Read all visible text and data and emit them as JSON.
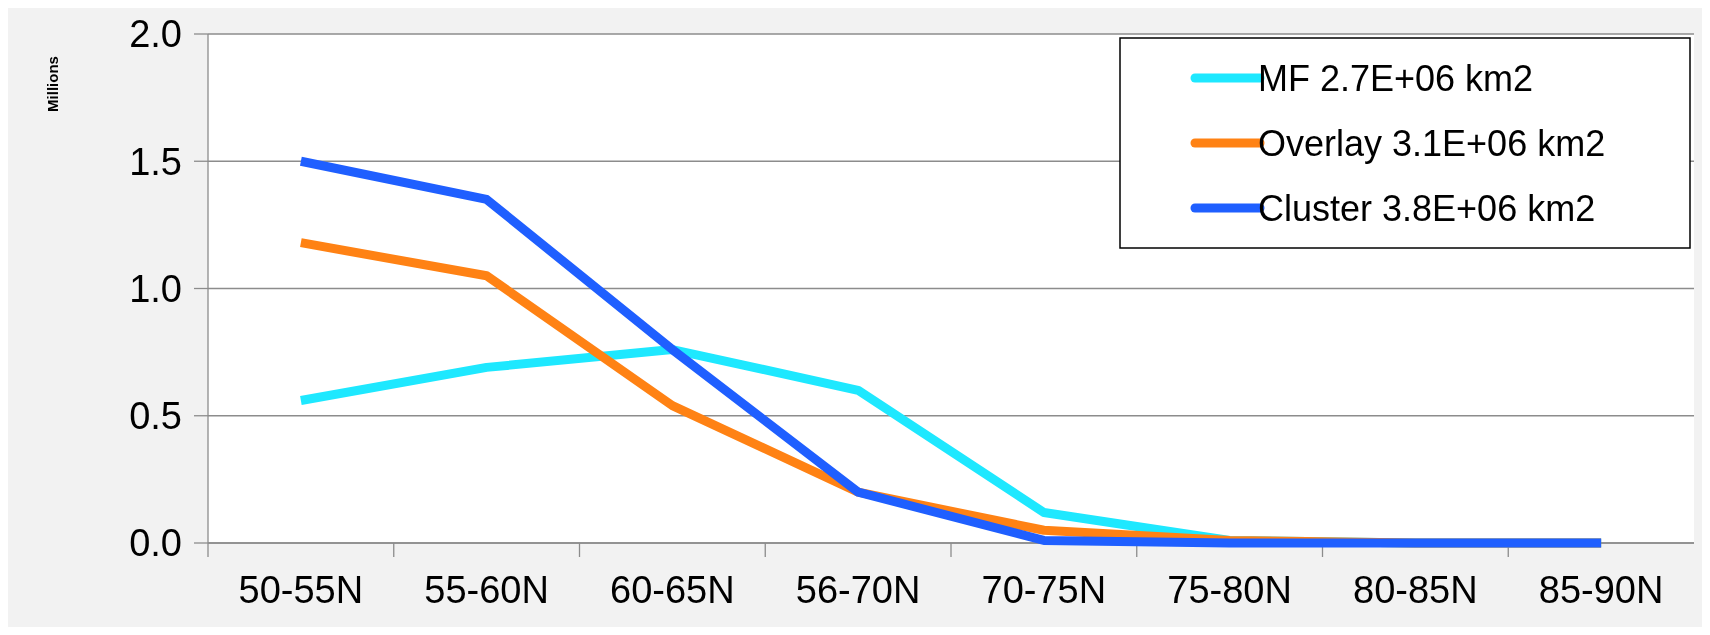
{
  "chart_data": {
    "type": "line",
    "ylabel": "Millions",
    "categories": [
      "50-55N",
      "55-60N",
      "60-65N",
      "56-70N",
      "70-75N",
      "75-80N",
      "80-85N",
      "85-90N"
    ],
    "series": [
      {
        "name": "MF 2.7E+06 km2",
        "color": "#1ee8ff",
        "values": [
          0.56,
          0.69,
          0.76,
          0.6,
          0.12,
          0.01,
          0,
          0
        ]
      },
      {
        "name": "Overlay 3.1E+06 km2",
        "color": "#ff8214",
        "values": [
          1.18,
          1.05,
          0.54,
          0.2,
          0.05,
          0.01,
          0,
          0
        ]
      },
      {
        "name": "Cluster 3.8E+06 km2",
        "color": "#1f5fff",
        "values": [
          1.5,
          1.35,
          0.76,
          0.2,
          0.01,
          0,
          0,
          0
        ]
      }
    ],
    "ylim": [
      0,
      2
    ],
    "yticks": [
      {
        "value": 0,
        "label": "0.0"
      },
      {
        "value": 0.5,
        "label": "0.5"
      },
      {
        "value": 1,
        "label": "1.0"
      },
      {
        "value": 1.5,
        "label": "1.5"
      },
      {
        "value": 2,
        "label": "2.0"
      }
    ],
    "grid": "y",
    "legend": "top right",
    "marker": "none",
    "line_style": "solid"
  }
}
